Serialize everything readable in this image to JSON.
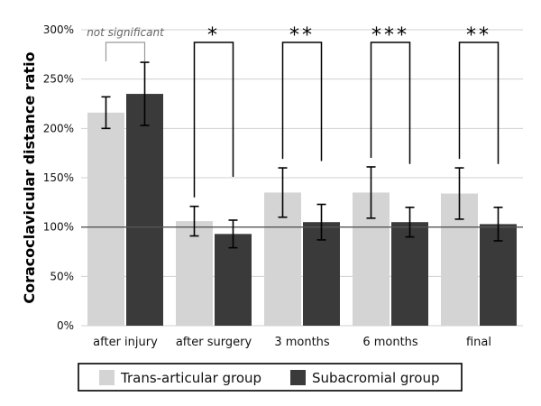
{
  "chart_data": {
    "type": "bar",
    "title": "",
    "xlabel": "",
    "ylabel": "Coracoclavicular distance ratio",
    "ylim": [
      0,
      300
    ],
    "yticks": [
      "0%",
      "50%",
      "100%",
      "150%",
      "200%",
      "250%",
      "300%"
    ],
    "grid": true,
    "reference_line": 100,
    "categories": [
      "after injury",
      "after surgery",
      "3 months",
      "6 months",
      "final"
    ],
    "series": [
      {
        "name": "Trans-articular group",
        "color": "#d4d4d4",
        "values": [
          216,
          106,
          135,
          135,
          134
        ],
        "errors": [
          16,
          15,
          25,
          26,
          26
        ]
      },
      {
        "name": "Subacromial group",
        "color": "#3a3a3a",
        "values": [
          235,
          93,
          105,
          105,
          103
        ],
        "errors": [
          32,
          14,
          18,
          15,
          17
        ]
      }
    ],
    "significance": [
      "not significant",
      "*",
      "**",
      "***",
      "**"
    ],
    "legend_position": "bottom"
  }
}
